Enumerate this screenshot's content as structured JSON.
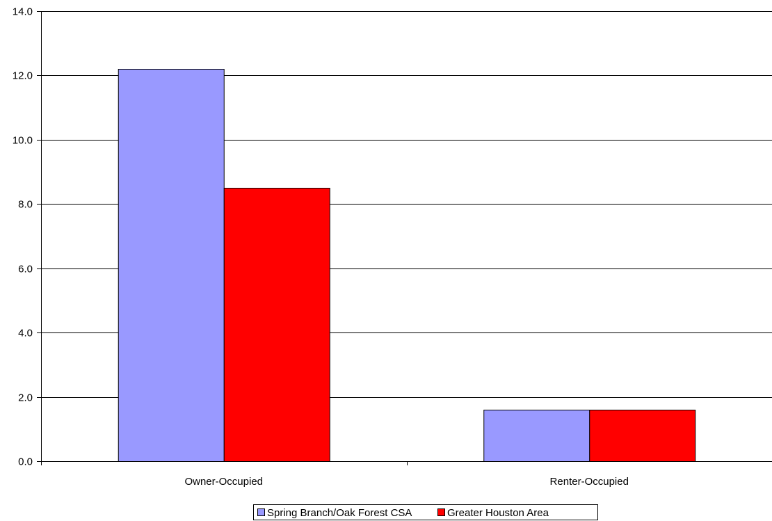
{
  "chart_data": {
    "type": "bar",
    "categories": [
      "Owner-Occupied",
      "Renter-Occupied"
    ],
    "series": [
      {
        "name": "Spring Branch/Oak Forest CSA",
        "values": [
          12.2,
          1.6
        ],
        "color": "#9999ff"
      },
      {
        "name": "Greater Houston Area",
        "values": [
          8.5,
          1.6
        ],
        "color": "#ff0000"
      }
    ],
    "ylim": [
      0,
      14
    ],
    "yticks": [
      "0.0",
      "2.0",
      "4.0",
      "6.0",
      "8.0",
      "10.0",
      "12.0",
      "14.0"
    ],
    "grid": true,
    "legend_position": "bottom"
  }
}
